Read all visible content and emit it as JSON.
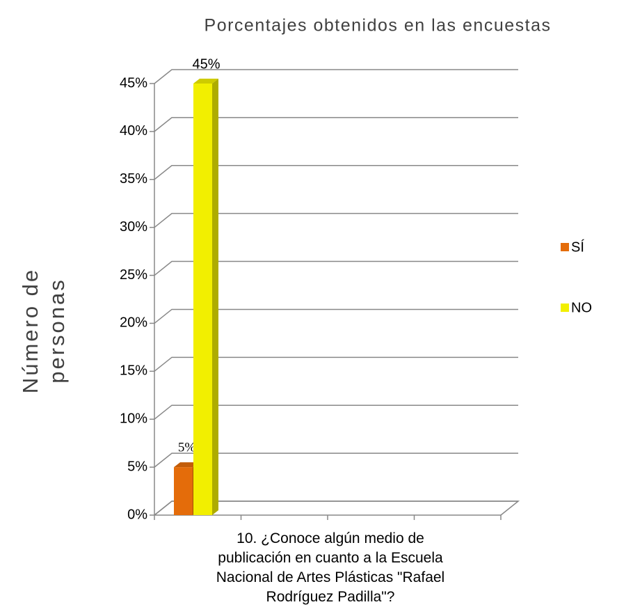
{
  "chart_data": {
    "type": "bar3d",
    "title": "Porcentajes obtenidos en las encuestas",
    "y_label": "Número de personas",
    "categories": [
      "10. ¿Conoce algún medio de publicación en cuanto a la Escuela Nacional de Artes Plásticas \"Rafael Rodríguez Padilla\"?"
    ],
    "series": [
      {
        "name": "SÍ",
        "color": "#e46c0a",
        "values": [
          5
        ],
        "value_labels": [
          "5%"
        ]
      },
      {
        "name": "NO",
        "color": "#f2ef00",
        "values": [
          45
        ],
        "value_labels": [
          "45%"
        ]
      }
    ],
    "ylim": [
      0,
      45
    ],
    "yticks": [
      {
        "value": 0,
        "label": "0%"
      },
      {
        "value": 5,
        "label": "5%"
      },
      {
        "value": 10,
        "label": "10%"
      },
      {
        "value": 15,
        "label": "15%"
      },
      {
        "value": 20,
        "label": "20%"
      },
      {
        "value": 25,
        "label": "25%"
      },
      {
        "value": 30,
        "label": "30%"
      },
      {
        "value": 35,
        "label": "35%"
      },
      {
        "value": 40,
        "label": "40%"
      },
      {
        "value": 45,
        "label": "45%"
      }
    ],
    "grid": true,
    "legend": "right"
  }
}
